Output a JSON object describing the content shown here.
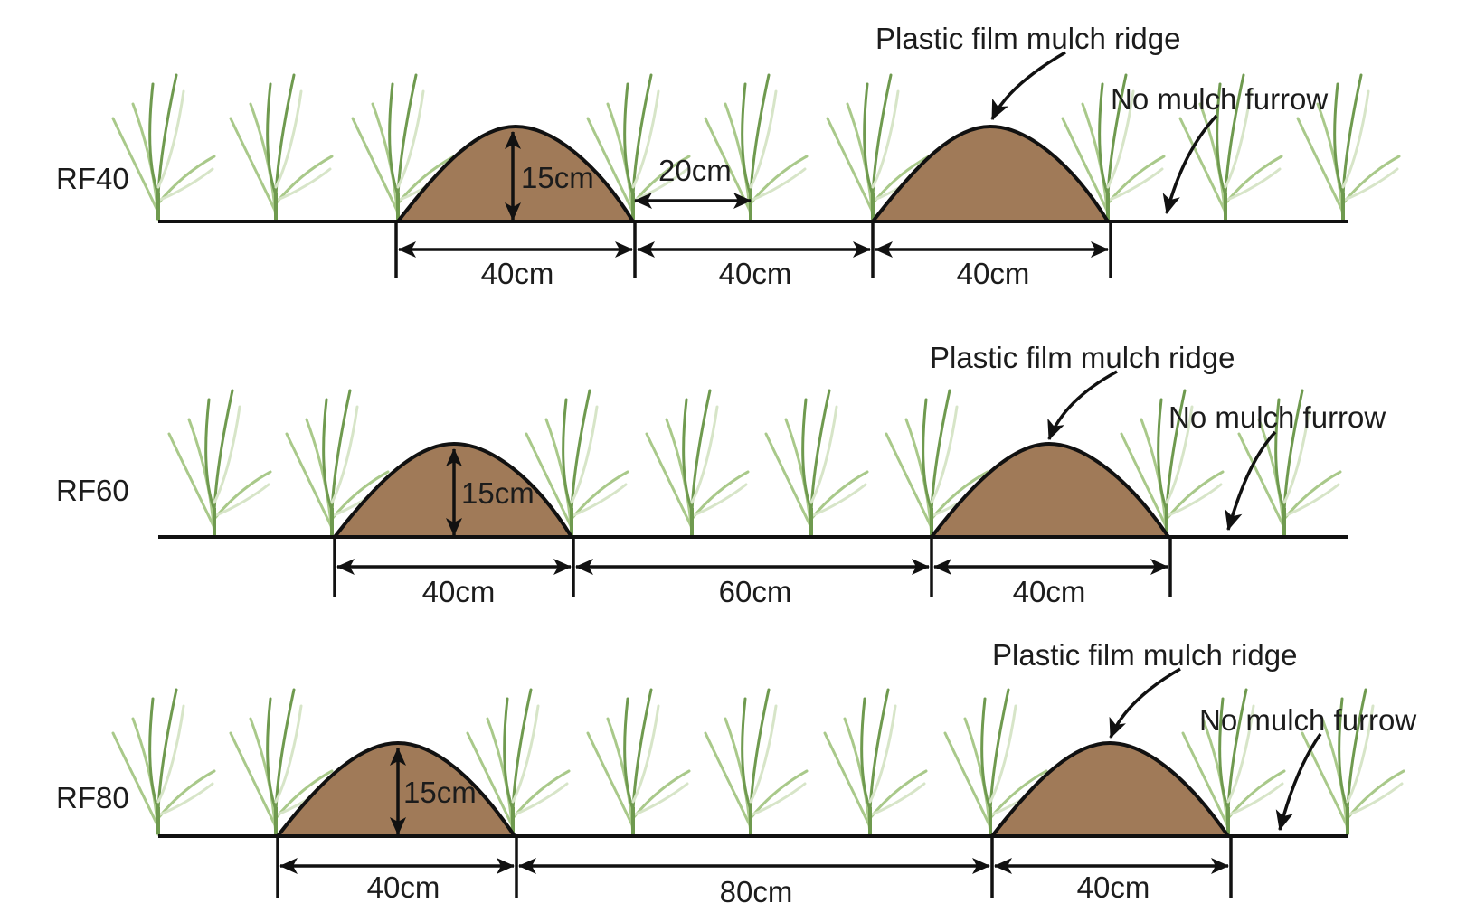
{
  "colors": {
    "soil": "#a07a58",
    "outline": "#111111",
    "plant_dark": "#6f9a4f",
    "plant_light": "#a9c98a",
    "plant_edge": "#d7e5c8"
  },
  "legend_terms": {
    "ridge": "Plastic film mulch ridge",
    "furrow": "No mulch furrow"
  },
  "rows": [
    {
      "label": "RF40",
      "ridge_width": "40cm",
      "furrow_width": "40cm",
      "ridge_height": "15cm",
      "plant_spacing": "20cm",
      "ridge_callout": "Plastic film mulch ridge",
      "furrow_callout": "No mulch furrow",
      "dimensions": [
        "40cm",
        "40cm",
        "40cm"
      ]
    },
    {
      "label": "RF60",
      "ridge_width": "40cm",
      "furrow_width": "60cm",
      "ridge_height": "15cm",
      "ridge_callout": "Plastic film mulch ridge",
      "furrow_callout": "No mulch furrow",
      "dimensions": [
        "40cm",
        "60cm",
        "40cm"
      ]
    },
    {
      "label": "RF80",
      "ridge_width": "40cm",
      "furrow_width": "80cm",
      "ridge_height": "15cm",
      "ridge_callout": "Plastic film mulch ridge",
      "furrow_callout": "No mulch furrow",
      "dimensions": [
        "40cm",
        "80cm",
        "40cm"
      ]
    }
  ]
}
